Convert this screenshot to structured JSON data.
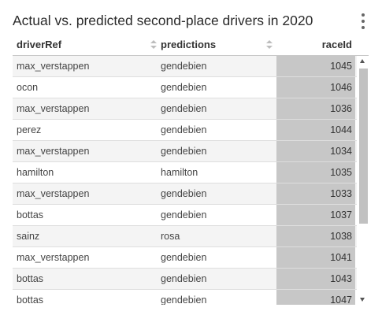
{
  "title": "Actual vs. predicted second-place drivers in 2020",
  "icons": {
    "menu": "kebab-menu-icon",
    "sort": "sort-icon"
  },
  "table": {
    "columns": [
      {
        "label": "driverRef"
      },
      {
        "label": "predictions"
      },
      {
        "label": "raceId"
      }
    ],
    "rows": [
      {
        "driverRef": "max_verstappen",
        "predictions": "gendebien",
        "raceId": "1045"
      },
      {
        "driverRef": "ocon",
        "predictions": "gendebien",
        "raceId": "1046"
      },
      {
        "driverRef": "max_verstappen",
        "predictions": "gendebien",
        "raceId": "1036"
      },
      {
        "driverRef": "perez",
        "predictions": "gendebien",
        "raceId": "1044"
      },
      {
        "driverRef": "max_verstappen",
        "predictions": "gendebien",
        "raceId": "1034"
      },
      {
        "driverRef": "hamilton",
        "predictions": "hamilton",
        "raceId": "1035"
      },
      {
        "driverRef": "max_verstappen",
        "predictions": "gendebien",
        "raceId": "1033"
      },
      {
        "driverRef": "bottas",
        "predictions": "gendebien",
        "raceId": "1037"
      },
      {
        "driverRef": "sainz",
        "predictions": "rosa",
        "raceId": "1038"
      },
      {
        "driverRef": "max_verstappen",
        "predictions": "gendebien",
        "raceId": "1041"
      },
      {
        "driverRef": "bottas",
        "predictions": "gendebien",
        "raceId": "1043"
      },
      {
        "driverRef": "bottas",
        "predictions": "gendebien",
        "raceId": "1047"
      }
    ]
  },
  "colors": {
    "highlight_column": "#c7c7c7",
    "row_stripe": "#f4f4f4"
  }
}
